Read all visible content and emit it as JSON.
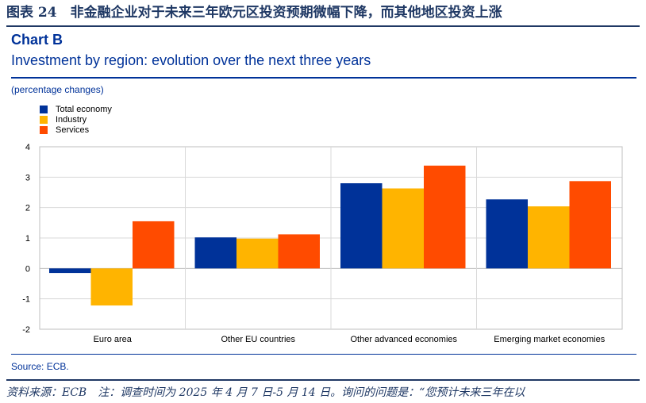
{
  "figure_title": "图表 24　非金融企业对于未来三年欧元区投资预期微幅下降，而其他地区投资上涨",
  "chart_label": "Chart B",
  "source": "Source: ECB.",
  "footer_note": "资料来源：ECB　注：调查时间为 2025 年 4 月 7 日-5 月 14 日。询问的问题是：“您预计未来三年在以",
  "colors": {
    "total": "#003299",
    "industry": "#FFB400",
    "services": "#FF4B00",
    "accent": "#003299",
    "grid": "#d9d9d9",
    "axis": "#bfbfbf"
  },
  "chart_data": {
    "type": "bar",
    "title": "Investment by region: evolution over the next three years",
    "ylabel": "(percentage changes)",
    "xlabel": "",
    "categories": [
      "Euro area",
      "Other EU countries",
      "Other advanced economies",
      "Emerging market economies"
    ],
    "series": [
      {
        "name": "Total economy",
        "values": [
          -0.15,
          1.02,
          2.8,
          2.27
        ]
      },
      {
        "name": "Industry",
        "values": [
          -1.22,
          0.98,
          2.63,
          2.04
        ]
      },
      {
        "name": "Services",
        "values": [
          1.55,
          1.12,
          3.38,
          2.87
        ]
      }
    ],
    "ylim": [
      -2,
      4
    ],
    "yticks": [
      4,
      3,
      2,
      1,
      0,
      -1,
      -2
    ],
    "grid": true,
    "legend": "top-left"
  }
}
